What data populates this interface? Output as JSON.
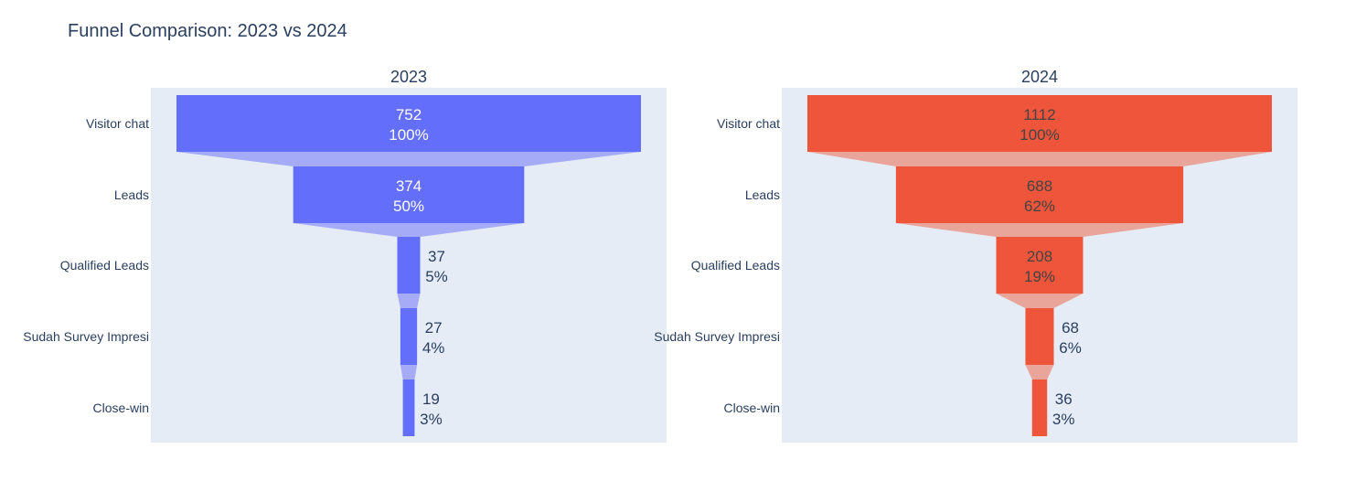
{
  "chart_data": {
    "type": "funnel",
    "title": "Funnel Comparison: 2023 vs 2024",
    "categories": [
      "Visitor chat",
      "Leads",
      "Qualified Leads",
      "Sudah Survey Impresi",
      "Close-win"
    ],
    "panels": [
      {
        "name": "2023",
        "color": "#636efa",
        "connector_color": "#a5abf7",
        "values": [
          752,
          374,
          37,
          27,
          19
        ],
        "percent_labels": [
          "100%",
          "50%",
          "5%",
          "4%",
          "3%"
        ]
      },
      {
        "name": "2024",
        "color": "#ef553b",
        "connector_color": "#e9a59a",
        "values": [
          1112,
          688,
          208,
          68,
          36
        ],
        "percent_labels": [
          "100%",
          "62%",
          "19%",
          "6%",
          "3%"
        ]
      }
    ],
    "plot_background": "#e5ecf6",
    "category_label_display": [
      "Visitor chat",
      "Leads",
      "Qualified Leads",
      "Sudah Survey Impresi",
      "Close-win"
    ]
  }
}
